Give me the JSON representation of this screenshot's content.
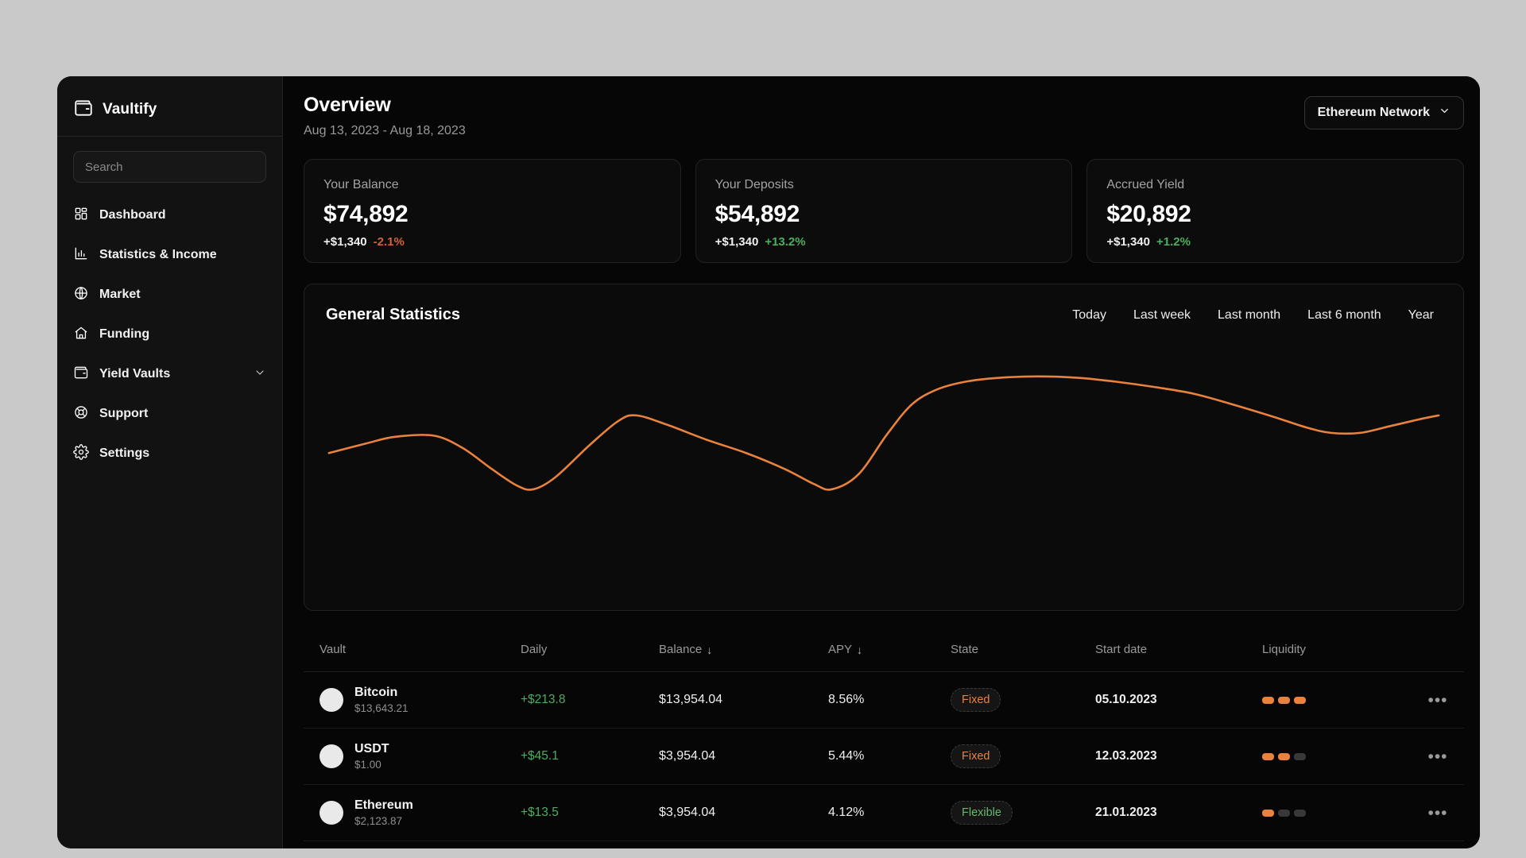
{
  "app": {
    "name": "Vaultify",
    "logo_icon": "wallet-icon"
  },
  "sidebar": {
    "search_placeholder": "Search",
    "items": [
      {
        "label": "Dashboard",
        "icon": "grid-icon"
      },
      {
        "label": "Statistics & Income",
        "icon": "bar-chart-icon"
      },
      {
        "label": "Market",
        "icon": "globe-icon"
      },
      {
        "label": "Funding",
        "icon": "home-icon"
      },
      {
        "label": "Yield Vaults",
        "icon": "wallet-icon",
        "has_chevron": true
      },
      {
        "label": "Support",
        "icon": "lifebuoy-icon"
      },
      {
        "label": "Settings",
        "icon": "gear-icon"
      }
    ]
  },
  "header": {
    "title": "Overview",
    "date_range": "Aug 13, 2023 - Aug 18, 2023",
    "network_selector": "Ethereum Network"
  },
  "stat_cards": [
    {
      "label": "Your Balance",
      "value": "$74,892",
      "change_amount": "+$1,340",
      "change_pct": "-2.1%",
      "change_dir": "down"
    },
    {
      "label": "Your Deposits",
      "value": "$54,892",
      "change_amount": "+$1,340",
      "change_pct": "+13.2%",
      "change_dir": "up"
    },
    {
      "label": "Accrued Yield",
      "value": "$20,892",
      "change_amount": "+$1,340",
      "change_pct": "+1.2%",
      "change_dir": "up"
    }
  ],
  "statistics_panel": {
    "title": "General Statistics",
    "filters": [
      "Today",
      "Last week",
      "Last month",
      "Last 6 month",
      "Year"
    ]
  },
  "chart_data": {
    "type": "line",
    "title": "General Statistics",
    "xlabel": "",
    "ylabel": "",
    "xlim": [
      0,
      100
    ],
    "ylim": [
      0,
      100
    ],
    "grid": false,
    "axes_hidden": true,
    "series": [
      {
        "name": "balance-curve",
        "color": "#e8823d",
        "x": [
          0,
          3.3,
          5.9,
          9.4,
          12.0,
          14.7,
          16.9,
          18.4,
          20.4,
          23.5,
          26.1,
          27.7,
          30.5,
          34.0,
          37.6,
          41.1,
          43.7,
          45.3,
          47.7,
          50.3,
          52.5,
          54.7,
          57.3,
          60.4,
          63.9,
          67.5,
          71.0,
          74.5,
          78.0,
          81.5,
          85.1,
          88.1,
          90.3,
          92.9,
          95.6,
          98.2,
          100
        ],
        "y": [
          41,
          48,
          53,
          54,
          45,
          29,
          17,
          14,
          23,
          47,
          65,
          69,
          62,
          51,
          41,
          29,
          18,
          14,
          25,
          55,
          77,
          88,
          94,
          97,
          98,
          97,
          94,
          90,
          85,
          77,
          68,
          60,
          56,
          56,
          61,
          66,
          69
        ]
      }
    ]
  },
  "table": {
    "columns": [
      {
        "label": "Vault"
      },
      {
        "label": "Daily"
      },
      {
        "label": "Balance",
        "sort": "desc"
      },
      {
        "label": "APY",
        "sort": "desc"
      },
      {
        "label": "State"
      },
      {
        "label": "Start date"
      },
      {
        "label": "Liquidity"
      },
      {
        "label": ""
      }
    ],
    "sort_desc_glyph": "↓",
    "row_menu_glyph": "•••",
    "rows": [
      {
        "name": "Bitcoin",
        "price": "$13,643.21",
        "daily": "+$213.8",
        "balance": "$13,954.04",
        "apy": "8.56%",
        "state": "Fixed",
        "state_color": "orange",
        "start_date": "05.10.2023",
        "liquidity_level": 3
      },
      {
        "name": "USDT",
        "price": "$1.00",
        "daily": "+$45.1",
        "balance": "$3,954.04",
        "apy": "5.44%",
        "state": "Fixed",
        "state_color": "orange",
        "start_date": "12.03.2023",
        "liquidity_level": 2
      },
      {
        "name": "Ethereum",
        "price": "$2,123.87",
        "daily": "+$13.5",
        "balance": "$3,954.04",
        "apy": "4.12%",
        "state": "Flexible",
        "state_color": "green",
        "start_date": "21.01.2023",
        "liquidity_level": 1
      }
    ],
    "liquidity_segments": 3
  },
  "colors": {
    "accent_orange": "#e8823d",
    "positive_green": "#4cae5e",
    "negative_orange": "#d2613a",
    "state_green": "#67b76c",
    "liquidity_off": "#383838"
  }
}
